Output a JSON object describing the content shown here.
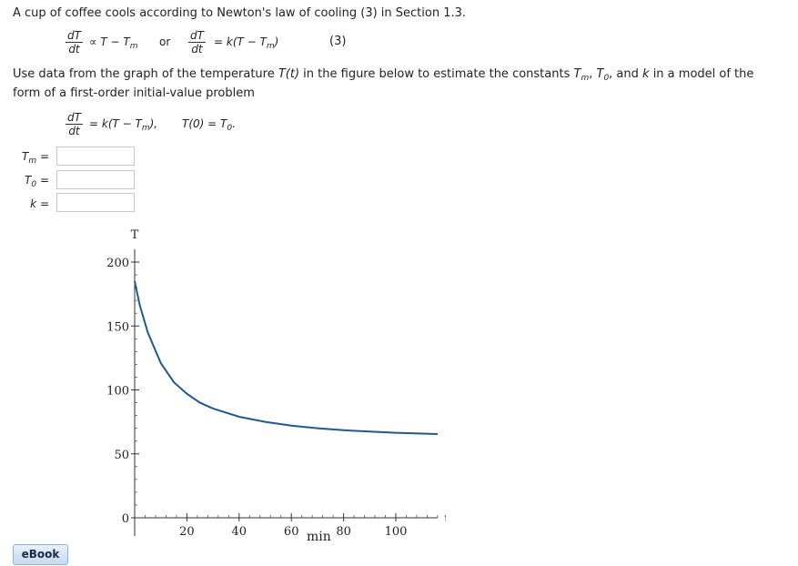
{
  "intro": {
    "before": "A cup of coffee cools according to Newton's law of cooling (3) in Section 1.3."
  },
  "eq3": {
    "num": "dT",
    "den": "dt",
    "prop": "∝ T − T",
    "m": "m",
    "or": "or",
    "rhs": "= k(T − T",
    "rhs_close": ")",
    "tag": "(3)"
  },
  "paragraph": {
    "line1_a": "Use data from the graph of the temperature ",
    "line1_T": "T(t)",
    "line1_b": " in the figure below to estimate the constants ",
    "Tm": "T",
    "m": "m",
    "comma1": ", ",
    "T0": "T",
    "zero": "0",
    "line1_c": ", and ",
    "k": "k",
    "line1_d": " in a model of the",
    "line2": "form of a first-order initial-value problem"
  },
  "ivp": {
    "num": "dT",
    "den": "dt",
    "rhs": "= k(T − T",
    "m": "m",
    "rhs_close": "),",
    "init": "T(0) = T",
    "zero": "0",
    "period": "."
  },
  "answers": [
    {
      "label_main": "T",
      "label_sub": "m",
      "eq": "=",
      "value": ""
    },
    {
      "label_main": "T",
      "label_sub": "0",
      "eq": "=",
      "value": ""
    },
    {
      "label_main": "k",
      "label_sub": "",
      "eq": "=",
      "value": ""
    }
  ],
  "ebook_label": "eBook",
  "chart_data": {
    "type": "line",
    "ylabel": "T",
    "xlabel": "min",
    "xaxis_end_label": "t",
    "xlim": [
      0,
      116
    ],
    "ylim": [
      0,
      210
    ],
    "xticks": [
      20,
      40,
      60,
      80,
      100
    ],
    "yticks": [
      0,
      50,
      100,
      150,
      200
    ],
    "grid": false,
    "line_color": "#1f5a8c",
    "series": [
      {
        "x": [
          0,
          2,
          5,
          10,
          15,
          20,
          25,
          30,
          40,
          50,
          60,
          70,
          80,
          90,
          100,
          116
        ],
        "y": [
          185,
          166,
          145,
          121,
          106,
          97,
          90,
          85.5,
          79,
          75,
          72,
          70,
          68.5,
          67.5,
          66.5,
          65.5
        ]
      }
    ]
  }
}
